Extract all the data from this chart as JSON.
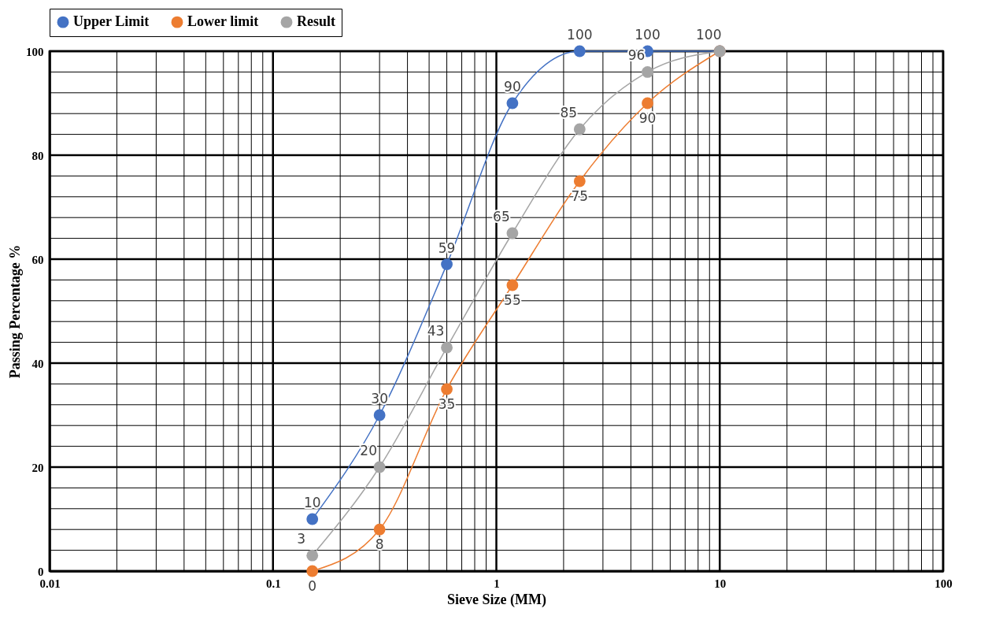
{
  "chart_data": {
    "type": "line",
    "xlabel": "Sieve Size (MM)",
    "ylabel": "Passing Percentage %",
    "x": [
      0.15,
      0.3,
      0.6,
      1.18,
      2.36,
      4.75,
      10
    ],
    "series": [
      {
        "name": "Upper Limit",
        "color": "#4472c4",
        "values": [
          10,
          30,
          59,
          90,
          100,
          100,
          100
        ],
        "value_labels": [
          "10",
          "30",
          "59",
          "90",
          "100",
          "100",
          null
        ]
      },
      {
        "name": "Lower limit",
        "color": "#ed7d31",
        "values": [
          0,
          8,
          35,
          55,
          75,
          90,
          100
        ],
        "value_labels": [
          "0",
          "8",
          "35",
          "55",
          "75",
          "90",
          null
        ]
      },
      {
        "name": "Result",
        "color": "#a5a5a5",
        "values": [
          3,
          20,
          43,
          65,
          85,
          96,
          100
        ]
      }
    ],
    "log": "x",
    "xlim": [
      0.01,
      100
    ],
    "ylim": [
      0,
      100
    ],
    "xticks": [
      0.01,
      {
        "value": 0.02,
        "label": null
      },
      {
        "value": 0.03,
        "label": null
      },
      {
        "value": 0.04,
        "label": null
      },
      {
        "value": 0.05,
        "label": null
      },
      {
        "value": 0.06,
        "label": null
      },
      {
        "value": 0.07,
        "label": null
      },
      {
        "value": 0.08,
        "label": null
      },
      {
        "value": 0.09,
        "label": null
      },
      0.1,
      {
        "value": 0.2,
        "label": null
      },
      {
        "value": 0.3,
        "label": null
      },
      {
        "value": 0.4,
        "label": null
      },
      {
        "value": 0.5,
        "label": null
      },
      {
        "value": 0.6,
        "label": null
      },
      {
        "value": 0.7,
        "label": null
      },
      {
        "value": 0.8,
        "label": null
      },
      {
        "value": 0.9,
        "label": null
      },
      1,
      {
        "value": 2,
        "label": null
      },
      {
        "value": 3,
        "label": null
      },
      {
        "value": 4,
        "label": null
      },
      {
        "value": 5,
        "label": null
      },
      {
        "value": 6,
        "label": null
      },
      {
        "value": 7,
        "label": null
      },
      {
        "value": 8,
        "label": null
      },
      {
        "value": 9,
        "label": null
      },
      10,
      {
        "value": 20,
        "label": null
      },
      {
        "value": 30,
        "label": null
      },
      {
        "value": 40,
        "label": null
      },
      {
        "value": 50,
        "label": null
      },
      {
        "value": 60,
        "label": null
      },
      {
        "value": 70,
        "label": null
      },
      {
        "value": 80,
        "label": null
      },
      {
        "value": 90,
        "label": null
      },
      100
    ],
    "yticks": [
      0,
      {
        "value": 4,
        "label": null
      },
      {
        "value": 8,
        "label": null
      },
      {
        "value": 12,
        "label": null
      },
      {
        "value": 16,
        "label": null
      },
      20,
      {
        "value": 24,
        "label": null
      },
      {
        "value": 28,
        "label": null
      },
      {
        "value": 32,
        "label": null
      },
      {
        "value": 36,
        "label": null
      },
      40,
      {
        "value": 44,
        "label": null
      },
      {
        "value": 48,
        "label": null
      },
      {
        "value": 52,
        "label": null
      },
      {
        "value": 56,
        "label": null
      },
      60,
      {
        "value": 64,
        "label": null
      },
      {
        "value": 68,
        "label": null
      },
      {
        "value": 72,
        "label": null
      },
      {
        "value": 76,
        "label": null
      },
      80,
      {
        "value": 84,
        "label": null
      },
      {
        "value": 88,
        "label": null
      },
      {
        "value": 92,
        "label": null
      },
      {
        "value": 96,
        "label": null
      },
      100
    ],
    "grid": true,
    "legend": "top",
    "marker": "circle",
    "line_style": "solid",
    "data_labels": true
  }
}
